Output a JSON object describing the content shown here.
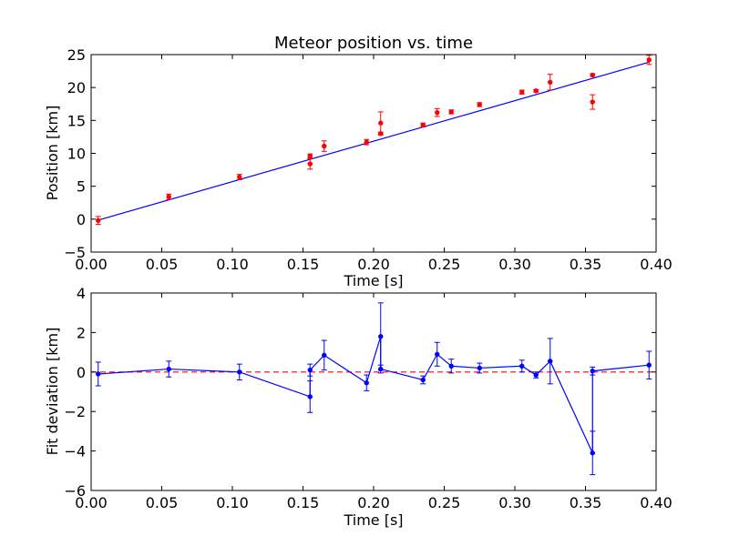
{
  "chart_data": [
    {
      "type": "scatter",
      "title": "Meteor position vs. time",
      "xlabel": "Time [s]",
      "ylabel": "Position [km]",
      "xlim": [
        0.0,
        0.4
      ],
      "ylim": [
        -5,
        25
      ],
      "xticks": [
        "0.00",
        "0.05",
        "0.10",
        "0.15",
        "0.20",
        "0.25",
        "0.30",
        "0.35",
        "0.40"
      ],
      "yticks": [
        "−5",
        "0",
        "5",
        "10",
        "15",
        "20",
        "25"
      ],
      "grid": false,
      "series": [
        {
          "kind": "points-with-errorbars",
          "color": "#ff0000",
          "points": [
            {
              "x": 0.005,
              "y": -0.2,
              "err": 0.6
            },
            {
              "x": 0.055,
              "y": 3.4,
              "err": 0.4
            },
            {
              "x": 0.105,
              "y": 6.4,
              "err": 0.4
            },
            {
              "x": 0.155,
              "y": 8.4,
              "err": 0.8
            },
            {
              "x": 0.155,
              "y": 9.6,
              "err": 0.3
            },
            {
              "x": 0.165,
              "y": 11.1,
              "err": 0.8
            },
            {
              "x": 0.195,
              "y": 11.7,
              "err": 0.4
            },
            {
              "x": 0.205,
              "y": 14.6,
              "err": 1.7
            },
            {
              "x": 0.205,
              "y": 13.0,
              "err": 0.2
            },
            {
              "x": 0.235,
              "y": 14.3,
              "err": 0.3
            },
            {
              "x": 0.245,
              "y": 16.2,
              "err": 0.6
            },
            {
              "x": 0.255,
              "y": 16.3,
              "err": 0.3
            },
            {
              "x": 0.275,
              "y": 17.4,
              "err": 0.3
            },
            {
              "x": 0.305,
              "y": 19.3,
              "err": 0.3
            },
            {
              "x": 0.315,
              "y": 19.5,
              "err": 0.2
            },
            {
              "x": 0.325,
              "y": 20.8,
              "err": 1.2
            },
            {
              "x": 0.355,
              "y": 17.8,
              "err": 1.1
            },
            {
              "x": 0.355,
              "y": 21.9,
              "err": 0.2
            },
            {
              "x": 0.395,
              "y": 24.2,
              "err": 0.7
            }
          ]
        },
        {
          "kind": "line",
          "color": "#0000ff",
          "x": [
            0.005,
            0.395
          ],
          "y": [
            -0.15,
            23.85
          ]
        }
      ]
    },
    {
      "type": "line",
      "title": "",
      "xlabel": "Time [s]",
      "ylabel": "Fit deviation [km]",
      "xlim": [
        0.0,
        0.4
      ],
      "ylim": [
        -6,
        4
      ],
      "xticks": [
        "0.00",
        "0.05",
        "0.10",
        "0.15",
        "0.20",
        "0.25",
        "0.30",
        "0.35",
        "0.40"
      ],
      "yticks": [
        "−6",
        "−4",
        "−2",
        "0",
        "2",
        "4"
      ],
      "grid": false,
      "reference_line": {
        "y": 0,
        "color": "#ff0000",
        "style": "dashed"
      },
      "series": [
        {
          "kind": "line-with-errorbars",
          "color": "#0000ff",
          "points": [
            {
              "x": 0.005,
              "y": -0.1,
              "err": 0.6
            },
            {
              "x": 0.055,
              "y": 0.15,
              "err": 0.4
            },
            {
              "x": 0.105,
              "y": 0.0,
              "err": 0.4
            },
            {
              "x": 0.155,
              "y": -1.25,
              "err": 0.8
            },
            {
              "x": 0.155,
              "y": 0.1,
              "err": 0.3
            },
            {
              "x": 0.165,
              "y": 0.85,
              "err": 0.75
            },
            {
              "x": 0.195,
              "y": -0.55,
              "err": 0.4
            },
            {
              "x": 0.205,
              "y": 1.8,
              "err": 1.7
            },
            {
              "x": 0.205,
              "y": 0.15,
              "err": 0.2
            },
            {
              "x": 0.235,
              "y": -0.4,
              "err": 0.2
            },
            {
              "x": 0.245,
              "y": 0.9,
              "err": 0.6
            },
            {
              "x": 0.255,
              "y": 0.3,
              "err": 0.35
            },
            {
              "x": 0.275,
              "y": 0.2,
              "err": 0.25
            },
            {
              "x": 0.305,
              "y": 0.3,
              "err": 0.3
            },
            {
              "x": 0.315,
              "y": -0.15,
              "err": 0.15
            },
            {
              "x": 0.325,
              "y": 0.55,
              "err": 1.15
            },
            {
              "x": 0.355,
              "y": -4.1,
              "err": 1.1
            },
            {
              "x": 0.355,
              "y": 0.05,
              "err": 0.2
            },
            {
              "x": 0.395,
              "y": 0.35,
              "err": 0.7
            }
          ]
        }
      ]
    }
  ]
}
